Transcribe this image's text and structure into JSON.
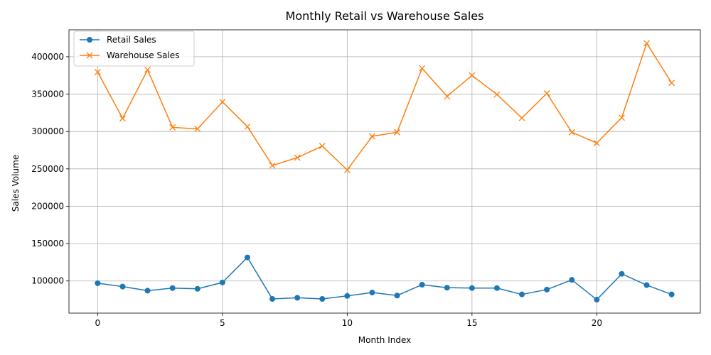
{
  "chart_data": {
    "type": "line",
    "title": "Monthly Retail vs Warehouse Sales",
    "xlabel": "Month Index",
    "ylabel": "Sales Volume",
    "xlim": [
      -1.15,
      24.15
    ],
    "ylim": [
      57000,
      436000
    ],
    "x_ticks": [
      0,
      5,
      10,
      15,
      20
    ],
    "y_ticks": [
      100000,
      150000,
      200000,
      250000,
      300000,
      350000,
      400000
    ],
    "grid": true,
    "legend_position": "top-left",
    "x": [
      0,
      1,
      2,
      3,
      4,
      5,
      6,
      7,
      8,
      9,
      10,
      11,
      12,
      13,
      14,
      15,
      16,
      17,
      18,
      19,
      20,
      21,
      22,
      23
    ],
    "series": [
      {
        "name": "Retail Sales",
        "color": "#1f77b4",
        "marker": "circle",
        "values": [
          97000,
          92500,
          87000,
          90500,
          89500,
          98000,
          131500,
          76000,
          77500,
          76000,
          80000,
          84500,
          80500,
          95000,
          91000,
          90500,
          90500,
          82000,
          88500,
          101500,
          75000,
          109500,
          94500,
          82000
        ]
      },
      {
        "name": "Warehouse Sales",
        "color": "#ff7f0e",
        "marker": "x",
        "values": [
          379500,
          317500,
          382500,
          305500,
          303500,
          339500,
          306500,
          254500,
          265000,
          280500,
          248500,
          293500,
          299000,
          384500,
          347000,
          375000,
          349500,
          318000,
          351000,
          299000,
          284500,
          318500,
          418000,
          365000
        ]
      }
    ]
  }
}
